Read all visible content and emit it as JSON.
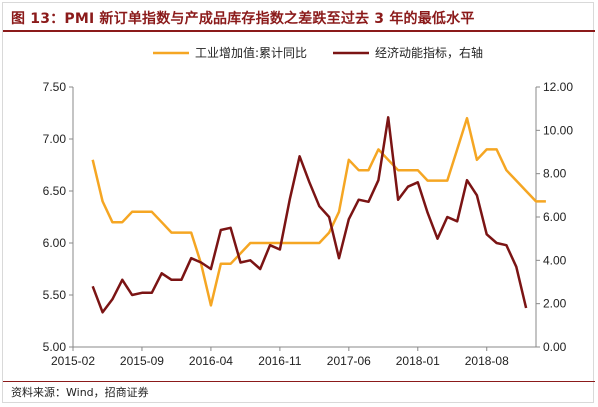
{
  "title": "图 13：PMI 新订单指数与产成品库存指数之差跌至过去 3 年的最低水平",
  "source": "资料来源：Wind，招商证券",
  "colors": {
    "series1": "#F5A623",
    "series2": "#7B1414",
    "title": "#8b1a1a"
  },
  "chart_data": {
    "type": "line",
    "title": "",
    "x_tick_labels": [
      "2015-02",
      "2015-09",
      "2016-04",
      "2016-11",
      "2017-06",
      "2018-01",
      "2018-08"
    ],
    "y_left": {
      "min": 5.0,
      "max": 7.5,
      "ticks": [
        "5.00",
        "5.50",
        "6.00",
        "6.50",
        "7.00",
        "7.50"
      ]
    },
    "y_right": {
      "min": 0.0,
      "max": 12.0,
      "ticks": [
        "0.00",
        "2.00",
        "4.00",
        "6.00",
        "8.00",
        "10.00",
        "12.00"
      ]
    },
    "legend_position": "top-center",
    "grid": false,
    "series": [
      {
        "name": "工业增加值:累计同比",
        "axis": "left",
        "values": [
          6.8,
          6.4,
          6.2,
          6.2,
          6.3,
          6.3,
          6.3,
          6.2,
          6.1,
          6.1,
          6.1,
          5.8,
          5.4,
          5.8,
          5.8,
          5.9,
          6.0,
          6.0,
          6.0,
          6.0,
          6.0,
          6.0,
          6.0,
          6.0,
          6.1,
          6.3,
          6.8,
          6.7,
          6.7,
          6.9,
          6.8,
          6.7,
          6.7,
          6.7,
          6.6,
          6.6,
          6.6,
          6.9,
          7.2,
          6.8,
          6.9,
          6.9,
          6.7,
          6.6,
          6.5,
          6.4,
          6.4
        ]
      },
      {
        "name": "经济动能指标，右轴",
        "axis": "right",
        "values": [
          2.8,
          1.6,
          2.2,
          3.1,
          2.4,
          2.5,
          2.5,
          3.4,
          3.1,
          3.1,
          4.1,
          3.9,
          3.6,
          5.4,
          5.5,
          3.9,
          4.0,
          3.6,
          4.7,
          4.5,
          6.8,
          8.8,
          7.6,
          6.5,
          6.0,
          4.1,
          5.9,
          6.8,
          6.7,
          7.7,
          10.6,
          6.8,
          7.4,
          7.6,
          6.2,
          5.0,
          6.0,
          5.8,
          7.7,
          7.0,
          5.2,
          4.8,
          4.7,
          3.7,
          1.8
        ]
      }
    ]
  }
}
